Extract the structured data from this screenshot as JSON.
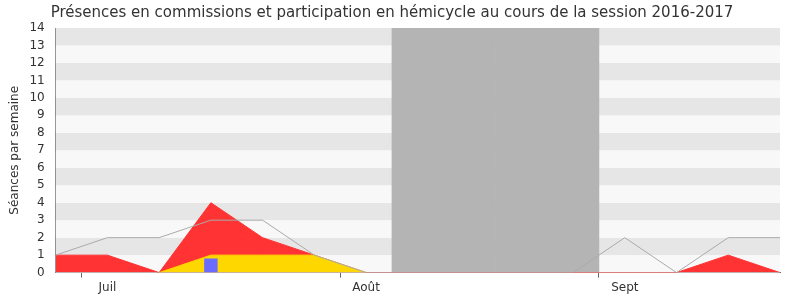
{
  "chart_data": {
    "type": "line",
    "title": "Présences en commissions et participation en hémicycle au cours de la session 2016-2017",
    "y_label": "Séances par semaine",
    "categories": [
      null,
      "Juil",
      null,
      null,
      null,
      null,
      "Août",
      null,
      null,
      null,
      null,
      "Sept",
      null,
      null,
      null
    ],
    "ylim": [
      0,
      14
    ],
    "yticks": [
      0,
      1,
      2,
      3,
      4,
      5,
      6,
      7,
      8,
      9,
      10,
      11,
      12,
      13,
      14
    ],
    "grid": true,
    "series": [
      {
        "type": "bar",
        "color": "#b4b4b4",
        "values": [
          null,
          null,
          null,
          null,
          null,
          null,
          null,
          14,
          14,
          14,
          14,
          null,
          null,
          null,
          null
        ]
      },
      {
        "type": "area",
        "color": "#ff3333",
        "values": [
          1,
          1,
          0,
          4,
          2,
          1,
          0,
          0,
          0,
          0,
          0,
          0,
          0,
          1,
          0
        ]
      },
      {
        "type": "area",
        "color": "#ffd700",
        "values": [
          null,
          null,
          0,
          1,
          1,
          1,
          0,
          null,
          null,
          null,
          null,
          null,
          null,
          null,
          null
        ]
      },
      {
        "type": "bar",
        "color": "#6b6bff",
        "values": [
          null,
          null,
          null,
          0.8,
          null,
          null,
          null,
          null,
          null,
          null,
          null,
          null,
          null,
          null,
          null
        ]
      },
      {
        "type": "line",
        "color": "#aaaaaa",
        "values": [
          1,
          2,
          2,
          3,
          3,
          1,
          0,
          0,
          0,
          0,
          0,
          2,
          0,
          2,
          2
        ]
      }
    ]
  }
}
